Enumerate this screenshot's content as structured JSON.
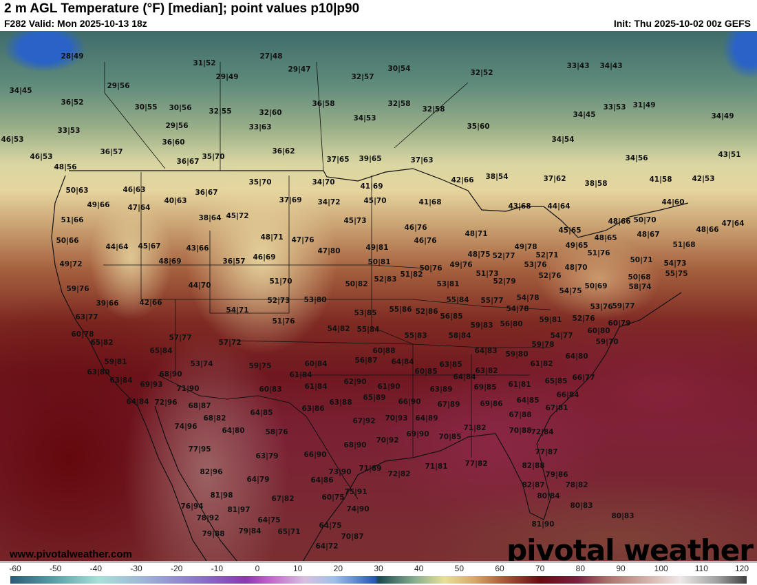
{
  "header": {
    "title": "2 m AGL Temperature (°F) [median]; point values p10|p90",
    "valid": "F282 Valid: Mon 2025-10-13 18z",
    "init": "Init: Thu 2025-10-02 00z GEFS"
  },
  "branding": {
    "website": "www.pivotalweather.com",
    "logo": "pivotal weather"
  },
  "colorbar": {
    "units": "°F",
    "ticks": [
      "-60",
      "-50",
      "-40",
      "-30",
      "-20",
      "-10",
      "0",
      "10",
      "20",
      "30",
      "40",
      "50",
      "60",
      "70",
      "80",
      "90",
      "100",
      "110",
      "120"
    ]
  },
  "point_values": [
    "28|49",
    "34|45",
    "29|56",
    "31|52",
    "27|48",
    "29|47",
    "29|49",
    "32|57",
    "30|54",
    "32|52",
    "33|43",
    "34|43",
    "36|52",
    "30|55",
    "30|56",
    "32|55",
    "32|60",
    "36|58",
    "32|58",
    "32|58",
    "34|45",
    "33|53",
    "31|49",
    "34|49",
    "33|53",
    "29|56",
    "33|63",
    "34|53",
    "35|60",
    "46|53",
    "36|60",
    "34|54",
    "46|53",
    "36|57",
    "36|67",
    "35|70",
    "36|62",
    "37|65",
    "39|65",
    "37|63",
    "34|56",
    "43|51",
    "48|56",
    "35|70",
    "34|70",
    "41|69",
    "42|66",
    "38|54",
    "37|62",
    "38|58",
    "41|58",
    "42|53",
    "50|63",
    "46|63",
    "36|67",
    "40|63",
    "37|69",
    "34|72",
    "45|70",
    "41|68",
    "44|64",
    "43|68",
    "44|60",
    "49|66",
    "47|64",
    "38|64",
    "45|72",
    "45|73",
    "48|66",
    "50|70",
    "47|64",
    "51|66",
    "46|76",
    "45|65",
    "48|66",
    "48|71",
    "47|76",
    "48|71",
    "48|65",
    "48|67",
    "50|66",
    "46|76",
    "44|64",
    "45|67",
    "43|66",
    "47|80",
    "49|81",
    "49|78",
    "49|65",
    "51|68",
    "48|75",
    "52|77",
    "52|71",
    "51|76",
    "49|72",
    "48|69",
    "36|57",
    "46|69",
    "50|81",
    "50|76",
    "49|76",
    "51|73",
    "53|76",
    "50|71",
    "54|73",
    "48|70",
    "51|82",
    "52|76",
    "55|75",
    "59|76",
    "44|70",
    "51|70",
    "50|82",
    "52|83",
    "52|79",
    "50|68",
    "53|81",
    "50|69",
    "54|75",
    "58|74",
    "39|66",
    "42|66",
    "52|73",
    "53|80",
    "55|84",
    "55|77",
    "54|78",
    "53|76",
    "59|77",
    "54|71",
    "53|85",
    "55|86",
    "52|86",
    "54|78",
    "63|77",
    "51|76",
    "56|85",
    "59|81",
    "52|76",
    "60|79",
    "56|80",
    "59|83",
    "54|82",
    "55|84",
    "60|78",
    "55|83",
    "58|84",
    "54|77",
    "60|80",
    "65|82",
    "57|77",
    "57|72",
    "59|78",
    "59|70",
    "65|84",
    "60|88",
    "64|83",
    "59|80",
    "64|80",
    "59|81",
    "53|74",
    "59|75",
    "56|87",
    "64|84",
    "60|84",
    "63|85",
    "61|82",
    "63|80",
    "68|90",
    "61|84",
    "60|85",
    "63|82",
    "66|77",
    "64|84",
    "65|85",
    "63|84",
    "69|93",
    "71|90",
    "61|90",
    "62|90",
    "61|84",
    "60|83",
    "69|85",
    "61|81",
    "63|89",
    "66|84",
    "64|84",
    "72|96",
    "65|89",
    "63|88",
    "66|90",
    "69|86",
    "64|85",
    "68|87",
    "67|89",
    "67|81",
    "63|86",
    "64|85",
    "70|93",
    "64|89",
    "68|82",
    "67|92",
    "67|88",
    "74|96",
    "64|80",
    "58|76",
    "71|82",
    "70|88",
    "72|84",
    "70|92",
    "69|90",
    "70|85",
    "68|90",
    "77|95",
    "66|90",
    "63|79",
    "77|87",
    "72|82",
    "71|81",
    "77|82",
    "82|88",
    "71|89",
    "73|90",
    "82|96",
    "79|86",
    "64|79",
    "64|86",
    "82|87",
    "78|82",
    "81|98",
    "75|91",
    "60|75",
    "67|82",
    "80|84",
    "76|94",
    "81|97",
    "74|90",
    "80|83",
    "78|92",
    "64|75",
    "64|75",
    "80|83",
    "79|88",
    "79|84",
    "65|71",
    "70|87",
    "81|90",
    "64|72"
  ]
}
